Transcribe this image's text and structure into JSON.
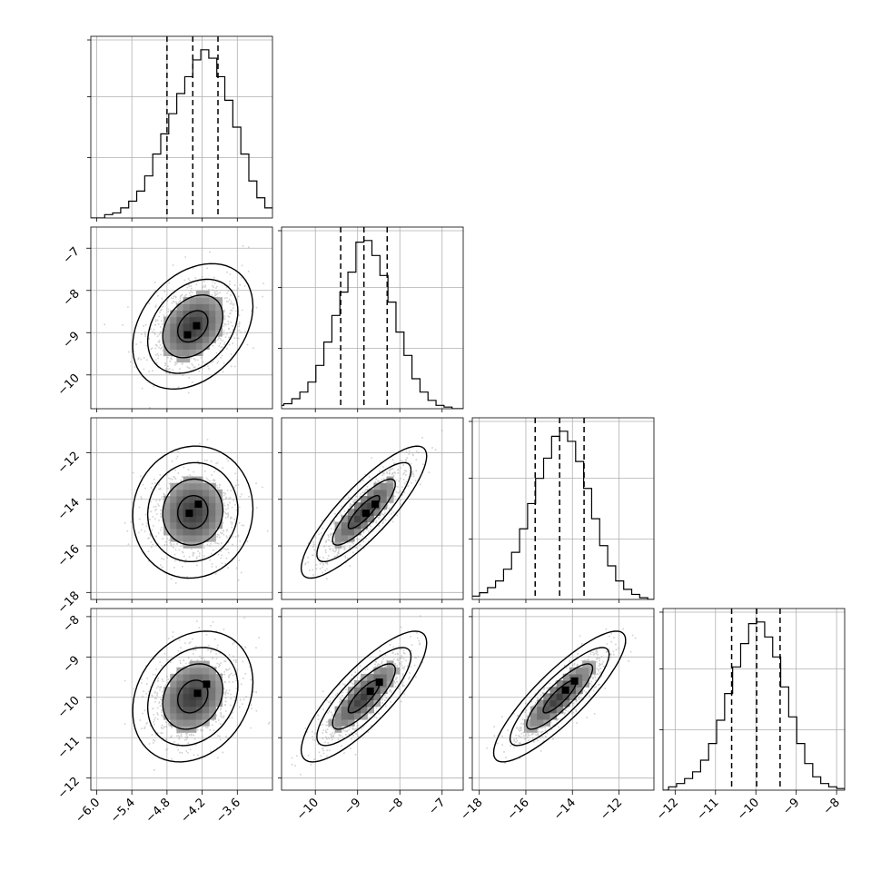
{
  "chart_data": {
    "type": "corner",
    "grid": true,
    "params": [
      {
        "range": [
          -6.1,
          -3.0
        ],
        "ticks": [
          -6.0,
          -5.4,
          -4.8,
          -4.2,
          -3.6
        ],
        "tick_labels": [
          "−6.0",
          "−5.4",
          "−4.8",
          "−4.2",
          "−3.6"
        ],
        "quantiles": [
          -4.8,
          -4.36,
          -3.93
        ],
        "histogram": [
          2,
          3,
          6,
          10,
          16,
          25,
          38,
          50,
          62,
          74,
          84,
          94,
          100,
          95,
          84,
          70,
          54,
          38,
          22,
          12,
          6,
          2
        ]
      },
      {
        "range": [
          -10.8,
          -6.5
        ],
        "ticks": [
          -10,
          -9,
          -8,
          -7
        ],
        "tick_labels": [
          "−10",
          "−9",
          "−8",
          "−7"
        ],
        "quantiles": [
          -9.4,
          -8.85,
          -8.3
        ],
        "histogram": [
          2,
          3,
          6,
          10,
          16,
          26,
          40,
          56,
          70,
          82,
          100,
          101,
          92,
          80,
          64,
          46,
          32,
          18,
          10,
          5,
          2,
          1
        ]
      },
      {
        "range": [
          -18.3,
          -10.5
        ],
        "ticks": [
          -18,
          -16,
          -14,
          -12
        ],
        "tick_labels": [
          "−18",
          "−16",
          "−14",
          "−12"
        ],
        "quantiles": [
          -15.6,
          -14.55,
          -13.5
        ],
        "histogram": [
          2,
          4,
          7,
          11,
          18,
          28,
          42,
          57,
          72,
          84,
          97,
          100,
          94,
          82,
          66,
          48,
          32,
          20,
          11,
          6,
          3,
          1
        ]
      },
      {
        "range": [
          -12.3,
          -7.8
        ],
        "ticks": [
          -12,
          -11,
          -10,
          -9,
          -8
        ],
        "tick_labels": [
          "−12",
          "−11",
          "−10",
          "−9",
          "−8"
        ],
        "quantiles": [
          -10.6,
          -9.98,
          -9.4
        ],
        "histogram": [
          2,
          4,
          7,
          11,
          18,
          28,
          42,
          58,
          74,
          88,
          100,
          101,
          92,
          80,
          62,
          44,
          28,
          16,
          8,
          4,
          2,
          1
        ]
      }
    ],
    "pairs": [
      {
        "row": 1,
        "col": 0,
        "mean": [
          -4.36,
          -8.85
        ],
        "sd": [
          0.38,
          0.55
        ],
        "corr": 0.32,
        "peak": [
          -4.45,
          -9.05
        ]
      },
      {
        "row": 2,
        "col": 0,
        "mean": [
          -4.36,
          -14.55
        ],
        "sd": [
          0.38,
          1.05
        ],
        "corr": 0.05,
        "peak": [
          -4.42,
          -14.6
        ]
      },
      {
        "row": 2,
        "col": 1,
        "mean": [
          -8.85,
          -14.55
        ],
        "sd": [
          0.55,
          1.05
        ],
        "corr": 0.85,
        "peak": [
          -8.8,
          -14.6
        ]
      },
      {
        "row": 3,
        "col": 0,
        "mean": [
          -4.36,
          -9.98
        ],
        "sd": [
          0.38,
          0.6
        ],
        "corr": 0.22,
        "peak": [
          -4.28,
          -9.9
        ]
      },
      {
        "row": 3,
        "col": 1,
        "mean": [
          -8.85,
          -9.98
        ],
        "sd": [
          0.55,
          0.6
        ],
        "corr": 0.82,
        "peak": [
          -8.7,
          -9.85
        ]
      },
      {
        "row": 3,
        "col": 2,
        "mean": [
          -14.55,
          -9.98
        ],
        "sd": [
          1.05,
          0.6
        ],
        "corr": 0.86,
        "peak": [
          -14.3,
          -9.82
        ]
      }
    ],
    "contour_levels_sigma": [
      0.5,
      1.0,
      1.5,
      2.0
    ]
  }
}
